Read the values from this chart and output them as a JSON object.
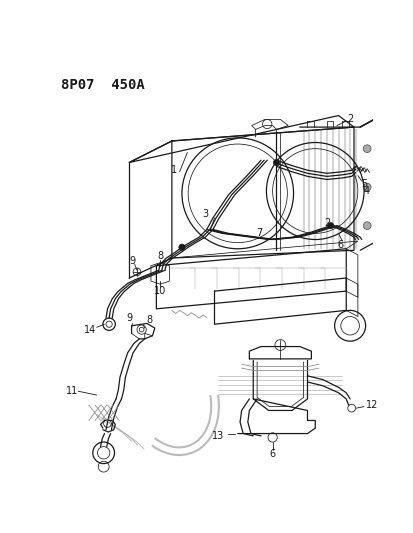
{
  "title": "8P07  450A",
  "bg_color": "#ffffff",
  "line_color": "#1a1a1a",
  "title_fontsize": 10,
  "fig_width": 4.14,
  "fig_height": 5.33,
  "dpi": 100,
  "label_fs": 7.0,
  "lw_main": 0.9,
  "lw_thin": 0.55,
  "lw_thick": 1.3
}
